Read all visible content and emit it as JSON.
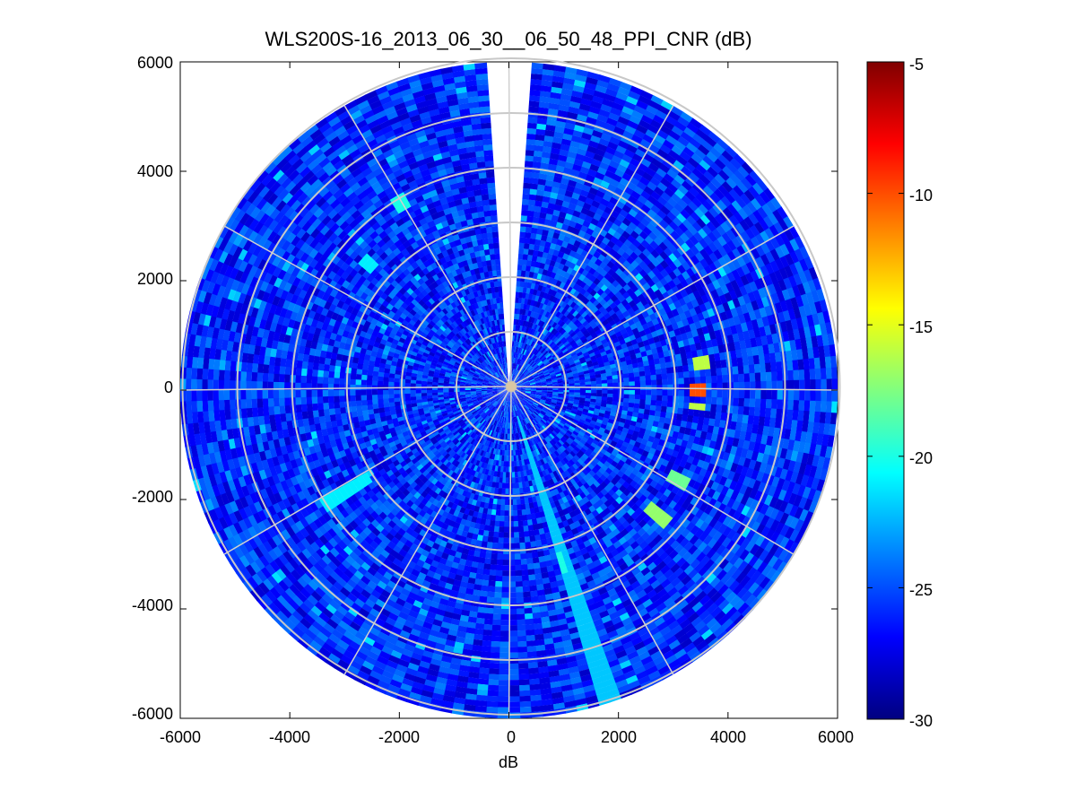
{
  "chart_data": {
    "type": "heatmap",
    "title": "WLS200S-16_2013_06_30__06_50_48_PPI_CNR (dB)",
    "xlabel": "dB",
    "ylabel": "",
    "xlim": [
      -6000,
      6000
    ],
    "ylim": [
      -6000,
      6000
    ],
    "x_ticks": [
      "-6000",
      "-4000",
      "-2000",
      "0",
      "2000",
      "4000",
      "6000"
    ],
    "y_ticks": [
      "6000",
      "4000",
      "2000",
      "0",
      "-2000",
      "-4000",
      "-6000"
    ],
    "grid": "polar",
    "polar_grid": {
      "ring_radii": [
        1000,
        2000,
        3000,
        4000,
        5000,
        6000
      ],
      "spoke_angles_deg": [
        0,
        30,
        60,
        90,
        120,
        150,
        180,
        210,
        240,
        270,
        300,
        330
      ]
    },
    "colorbar": {
      "colormap": "jet",
      "clim": [
        -30,
        -5
      ],
      "ticks": [
        "-5",
        "-10",
        "-15",
        "-20",
        "-25",
        "-30"
      ],
      "colors": [
        "#000080",
        "#0000ff",
        "#0080ff",
        "#00ffff",
        "#80ff80",
        "#ffff00",
        "#ff8000",
        "#ff0000",
        "#800000"
      ]
    },
    "scan": {
      "max_range": 6000,
      "gap_bearing_deg": [
        -4,
        4
      ],
      "background_cnr_db": -26,
      "features": [
        {
          "bearing_deg": 82,
          "range_from": 3450,
          "range_to": 3650,
          "cnr_db": -16
        },
        {
          "bearing_deg": 90,
          "range_from": 3350,
          "range_to": 3550,
          "cnr_db": -10
        },
        {
          "bearing_deg": 95,
          "range_from": 3350,
          "range_to": 3550,
          "cnr_db": -16
        },
        {
          "bearing_deg": 118,
          "range_from": 3350,
          "range_to": 3650,
          "cnr_db": -18
        },
        {
          "bearing_deg": 130,
          "range_from": 3300,
          "range_to": 3800,
          "cnr_db": -17
        },
        {
          "bearing_deg": 163,
          "range_from": 3100,
          "range_to": 3500,
          "cnr_db": -20
        },
        {
          "bearing_deg": 162,
          "range_from": 500,
          "range_to": 6000,
          "cnr_db": -22
        },
        {
          "bearing_deg": 238,
          "range_from": 3000,
          "range_to": 4000,
          "cnr_db": -21
        },
        {
          "bearing_deg": 312,
          "range_from": 3300,
          "range_to": 3600,
          "cnr_db": -21
        },
        {
          "bearing_deg": 330,
          "range_from": 3800,
          "range_to": 4100,
          "cnr_db": -20
        }
      ]
    }
  }
}
